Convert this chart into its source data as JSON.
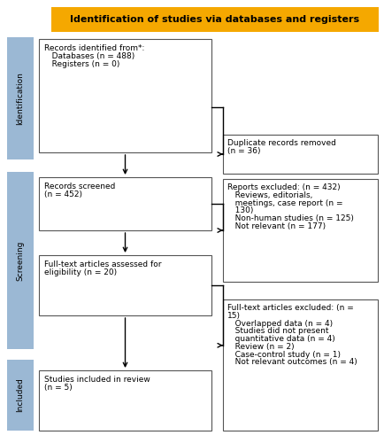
{
  "title": "Identification of studies via databases and registers",
  "title_bg": "#F5A800",
  "title_color": "black",
  "box_bg": "white",
  "box_edge": "#555555",
  "sidebar_color": "#9BB8D4",
  "sidebar_labels": [
    "Identification",
    "Screening",
    "Included"
  ],
  "box1_lines": [
    "Records identified from*:",
    "   Databases (n = 488)",
    "   Registers (n = 0)"
  ],
  "box2_lines": [
    "Records screened",
    "(n = 452)"
  ],
  "box3_lines": [
    "Full-text articles assessed for",
    "eligibility (n = 20)"
  ],
  "box4_lines": [
    "Studies included in review",
    "(n = 5)"
  ],
  "right1_lines": [
    "Duplicate records removed",
    "(n = 36)"
  ],
  "right2_lines": [
    "Reports excluded: (n = 432)",
    "   Reviews, editorials,",
    "   meetings, case report (n =",
    "   130)",
    "   Non-human studies (n = 125)",
    "   Not relevant (n = 177)"
  ],
  "right3_lines": [
    "Full-text articles excluded: (n =",
    "15)",
    "   Overlapped data (n = 4)",
    "   Studies did not present",
    "   quantitative data (n = 4)",
    "   Review (n = 2)",
    "   Case-control study (n = 1)",
    "   Not relevant outcomes (n = 4)"
  ],
  "font_size": 6.5,
  "title_font_size": 8.0
}
